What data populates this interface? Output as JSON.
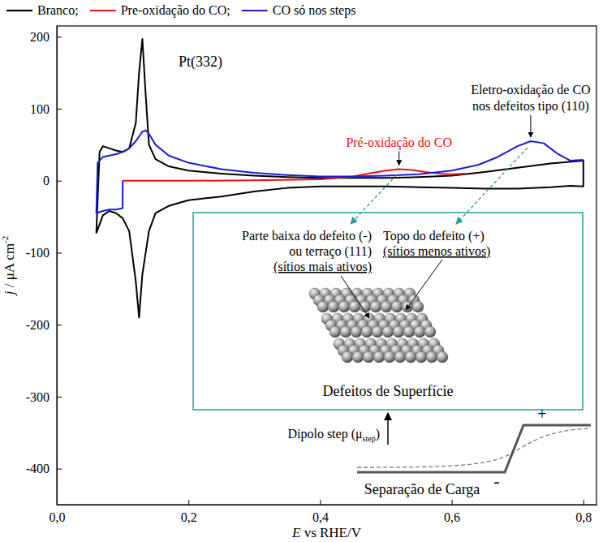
{
  "chart_data": {
    "type": "line",
    "x_label": "E vs RHE/V",
    "y_label": "j / μA cm",
    "y_label_superscript": "-2",
    "xlim": [
      0,
      0.82
    ],
    "xticks": [
      {
        "value": 0,
        "label": "0,0"
      },
      {
        "value": 0.2,
        "label": "0,2"
      },
      {
        "value": 0.4,
        "label": "0,4"
      },
      {
        "value": 0.6,
        "label": "0,6"
      },
      {
        "value": 0.8,
        "label": "0,8"
      }
    ],
    "ylim": [
      -450,
      215
    ],
    "yticks": [
      -400,
      -300,
      -200,
      -100,
      0,
      100,
      200
    ],
    "grid": false,
    "legend": "top",
    "series": [
      {
        "name": "Branco;",
        "color": "#000000",
        "x": [
          0.06,
          0.065,
          0.07,
          0.08,
          0.09,
          0.1,
          0.11,
          0.12,
          0.125,
          0.13,
          0.135,
          0.14,
          0.15,
          0.17,
          0.2,
          0.25,
          0.3,
          0.35,
          0.4,
          0.45,
          0.5,
          0.55,
          0.6,
          0.65,
          0.7,
          0.75,
          0.8,
          0.8,
          0.78,
          0.75,
          0.7,
          0.65,
          0.6,
          0.55,
          0.5,
          0.45,
          0.4,
          0.35,
          0.3,
          0.25,
          0.2,
          0.17,
          0.15,
          0.14,
          0.13,
          0.125,
          0.12,
          0.11,
          0.1,
          0.09,
          0.08,
          0.07,
          0.06
        ],
        "values": [
          -73,
          40,
          48,
          45,
          42,
          40,
          45,
          80,
          150,
          197,
          120,
          50,
          30,
          20,
          14,
          10,
          7,
          5,
          4,
          4,
          4,
          5,
          7,
          12,
          18,
          24,
          28,
          -8,
          -7,
          -9,
          -11,
          -11,
          -10,
          -9,
          -8,
          -8,
          -8,
          -10,
          -15,
          -22,
          -27,
          -35,
          -45,
          -70,
          -130,
          -190,
          -140,
          -70,
          -52,
          -45,
          -42,
          -48,
          -73
        ]
      },
      {
        "name": "Pre-oxidação do CO;",
        "color": "#e8110f",
        "x": [
          0.1,
          0.2,
          0.3,
          0.4,
          0.45,
          0.48,
          0.5,
          0.52,
          0.54,
          0.56,
          0.58,
          0.6,
          0.62
        ],
        "values": [
          0,
          0,
          0.5,
          2,
          6,
          11,
          14,
          16,
          15,
          12,
          10,
          9,
          10
        ]
      },
      {
        "name": "CO só nos steps",
        "color": "#1c1cd6",
        "x": [
          0.1,
          0.1,
          0.09,
          0.08,
          0.07,
          0.06,
          0.062,
          0.07,
          0.08,
          0.09,
          0.1,
          0.11,
          0.12,
          0.13,
          0.135,
          0.14,
          0.15,
          0.17,
          0.2,
          0.25,
          0.3,
          0.35,
          0.4,
          0.45,
          0.5,
          0.55,
          0.6,
          0.64,
          0.67,
          0.7,
          0.72,
          0.74,
          0.76,
          0.78,
          0.8
        ],
        "values": [
          0,
          -38,
          -40,
          -40,
          -42,
          -45,
          25,
          33,
          35,
          37,
          40,
          45,
          55,
          68,
          70,
          65,
          50,
          35,
          25,
          16,
          11,
          8,
          6,
          6,
          7,
          9,
          14,
          22,
          33,
          48,
          55,
          52,
          38,
          28,
          29
        ]
      }
    ],
    "annotations": {
      "surface_label": "Pt(332)",
      "red_peak_label": "Pré-oxidação do CO",
      "blue_peak_label": [
        "Eletro-oxidação de CO",
        "nos defeitos tipo (110)"
      ],
      "inset": {
        "low_site": [
          "Parte baixa do defeito (-)",
          "ou terraço (111)",
          "(sítios mais ativos)"
        ],
        "top_site": [
          "Topo do defeito (+)",
          "(sítios menos ativos)"
        ],
        "caption": "Defeitos de Superfície"
      },
      "dipole": {
        "text": "Dipolo step (μ",
        "subscript": "step",
        "suffix": ")"
      },
      "charge_signs": [
        "+",
        "-"
      ],
      "charge_caption": "Separação de Carga"
    }
  }
}
